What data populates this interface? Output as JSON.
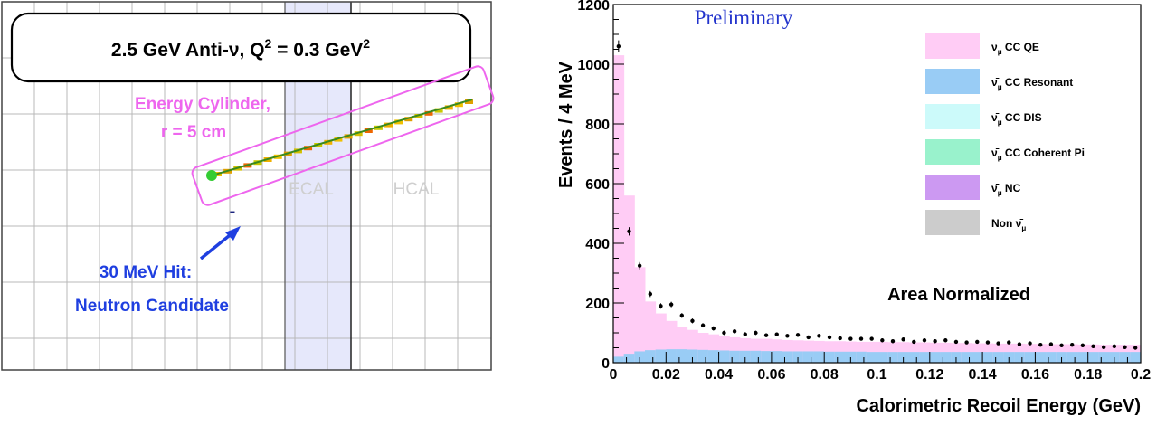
{
  "event_display": {
    "title_prefix": "2.5 GeV Anti-ν, Q",
    "title_sup1": "2",
    "title_middle": " = 0.3 GeV",
    "title_sup2": "2",
    "cylinder_label_line1": "Energy Cylinder,",
    "cylinder_label_line2": "r = 5 cm",
    "ecal_label": "ECAL",
    "hcal_label": "HCAL",
    "hit_mark": "-",
    "hit_label_line1": "30 MeV Hit:",
    "hit_label_line2": "Neutron Candidate",
    "colors": {
      "cylinder": "#ee66ee",
      "hit_text": "#1f3fe0",
      "ecal_band": "#e6e8fb",
      "track": "#3a8a1e",
      "vertex": "#33cc33"
    }
  },
  "chart_data": {
    "type": "bar",
    "preliminary_label": "Preliminary",
    "ylabel": "Events / 4 MeV",
    "xlabel": "Calorimetric Recoil Energy (GeV)",
    "annotation": "Area Normalized",
    "xlim": [
      0,
      0.2
    ],
    "ylim": [
      0,
      1200
    ],
    "x_ticks": [
      "0",
      "0.02",
      "0.04",
      "0.06",
      "0.08",
      "0.1",
      "0.12",
      "0.14",
      "0.16",
      "0.18",
      "0.2"
    ],
    "y_ticks": [
      "0",
      "200",
      "400",
      "600",
      "800",
      "1000",
      "1200"
    ],
    "bin_width": 0.004,
    "bin_edges_start": 0,
    "grid": false,
    "legend_position": "top-right",
    "legend": [
      {
        "label": "CC QE",
        "color": "#ffccf5"
      },
      {
        "label": "CC Resonant",
        "color": "#99ccf5"
      },
      {
        "label": "CC DIS",
        "color": "#ccfafa"
      },
      {
        "label": "CC Coherent Pi",
        "color": "#99f2cc"
      },
      {
        "label": "NC",
        "color": "#cc99f2"
      },
      {
        "label": "Non",
        "color": "#cccccc"
      }
    ],
    "legend_symbol": "ν̄",
    "legend_subscript": "μ",
    "series": [
      {
        "name": "CC QE",
        "stacked_top": [
          1030,
          560,
          320,
          205,
          165,
          140,
          120,
          110,
          100,
          95,
          90,
          85,
          82,
          80,
          80,
          78,
          76,
          75,
          74,
          73,
          72,
          72,
          71,
          70,
          70,
          70,
          69,
          69,
          68,
          68,
          67,
          67,
          66,
          66,
          65,
          65,
          64,
          64,
          64,
          63,
          63,
          62,
          62,
          62,
          61,
          61,
          60,
          60,
          60,
          60
        ]
      },
      {
        "name": "CC Resonant",
        "values": [
          20,
          30,
          38,
          42,
          44,
          45,
          45,
          44,
          43,
          42,
          41,
          40,
          40,
          40,
          39,
          39,
          38,
          38,
          38,
          38,
          37,
          37,
          37,
          37,
          36,
          36,
          36,
          36,
          36,
          36,
          36,
          36,
          36,
          36,
          36,
          36,
          36,
          36,
          36,
          36,
          36,
          36,
          36,
          36,
          36,
          36,
          36,
          36,
          36,
          36
        ]
      },
      {
        "name": "Data",
        "x": [
          0.002,
          0.006,
          0.01,
          0.014,
          0.018,
          0.022,
          0.026,
          0.03,
          0.034,
          0.038,
          0.042,
          0.046,
          0.05,
          0.054,
          0.058,
          0.062,
          0.066,
          0.07,
          0.074,
          0.078,
          0.082,
          0.086,
          0.09,
          0.094,
          0.098,
          0.102,
          0.106,
          0.11,
          0.114,
          0.118,
          0.122,
          0.126,
          0.13,
          0.134,
          0.138,
          0.142,
          0.146,
          0.15,
          0.154,
          0.158,
          0.162,
          0.166,
          0.17,
          0.174,
          0.178,
          0.182,
          0.186,
          0.19,
          0.194,
          0.198
        ],
        "y": [
          1060,
          440,
          325,
          230,
          190,
          195,
          158,
          140,
          125,
          115,
          100,
          105,
          95,
          100,
          92,
          95,
          90,
          93,
          85,
          90,
          85,
          82,
          80,
          80,
          80,
          75,
          72,
          78,
          70,
          75,
          72,
          75,
          70,
          68,
          70,
          68,
          65,
          68,
          62,
          65,
          60,
          62,
          58,
          60,
          58,
          55,
          52,
          55,
          52,
          50
        ],
        "err": [
          20,
          14,
          12,
          10,
          9,
          9,
          8,
          8,
          7,
          7,
          7,
          7,
          7,
          7,
          6,
          6,
          6,
          6,
          6,
          6,
          6,
          6,
          6,
          6,
          6,
          6,
          6,
          6,
          6,
          6,
          6,
          6,
          6,
          6,
          6,
          6,
          6,
          6,
          6,
          6,
          6,
          6,
          6,
          6,
          6,
          6,
          6,
          6,
          6,
          6
        ]
      }
    ]
  }
}
